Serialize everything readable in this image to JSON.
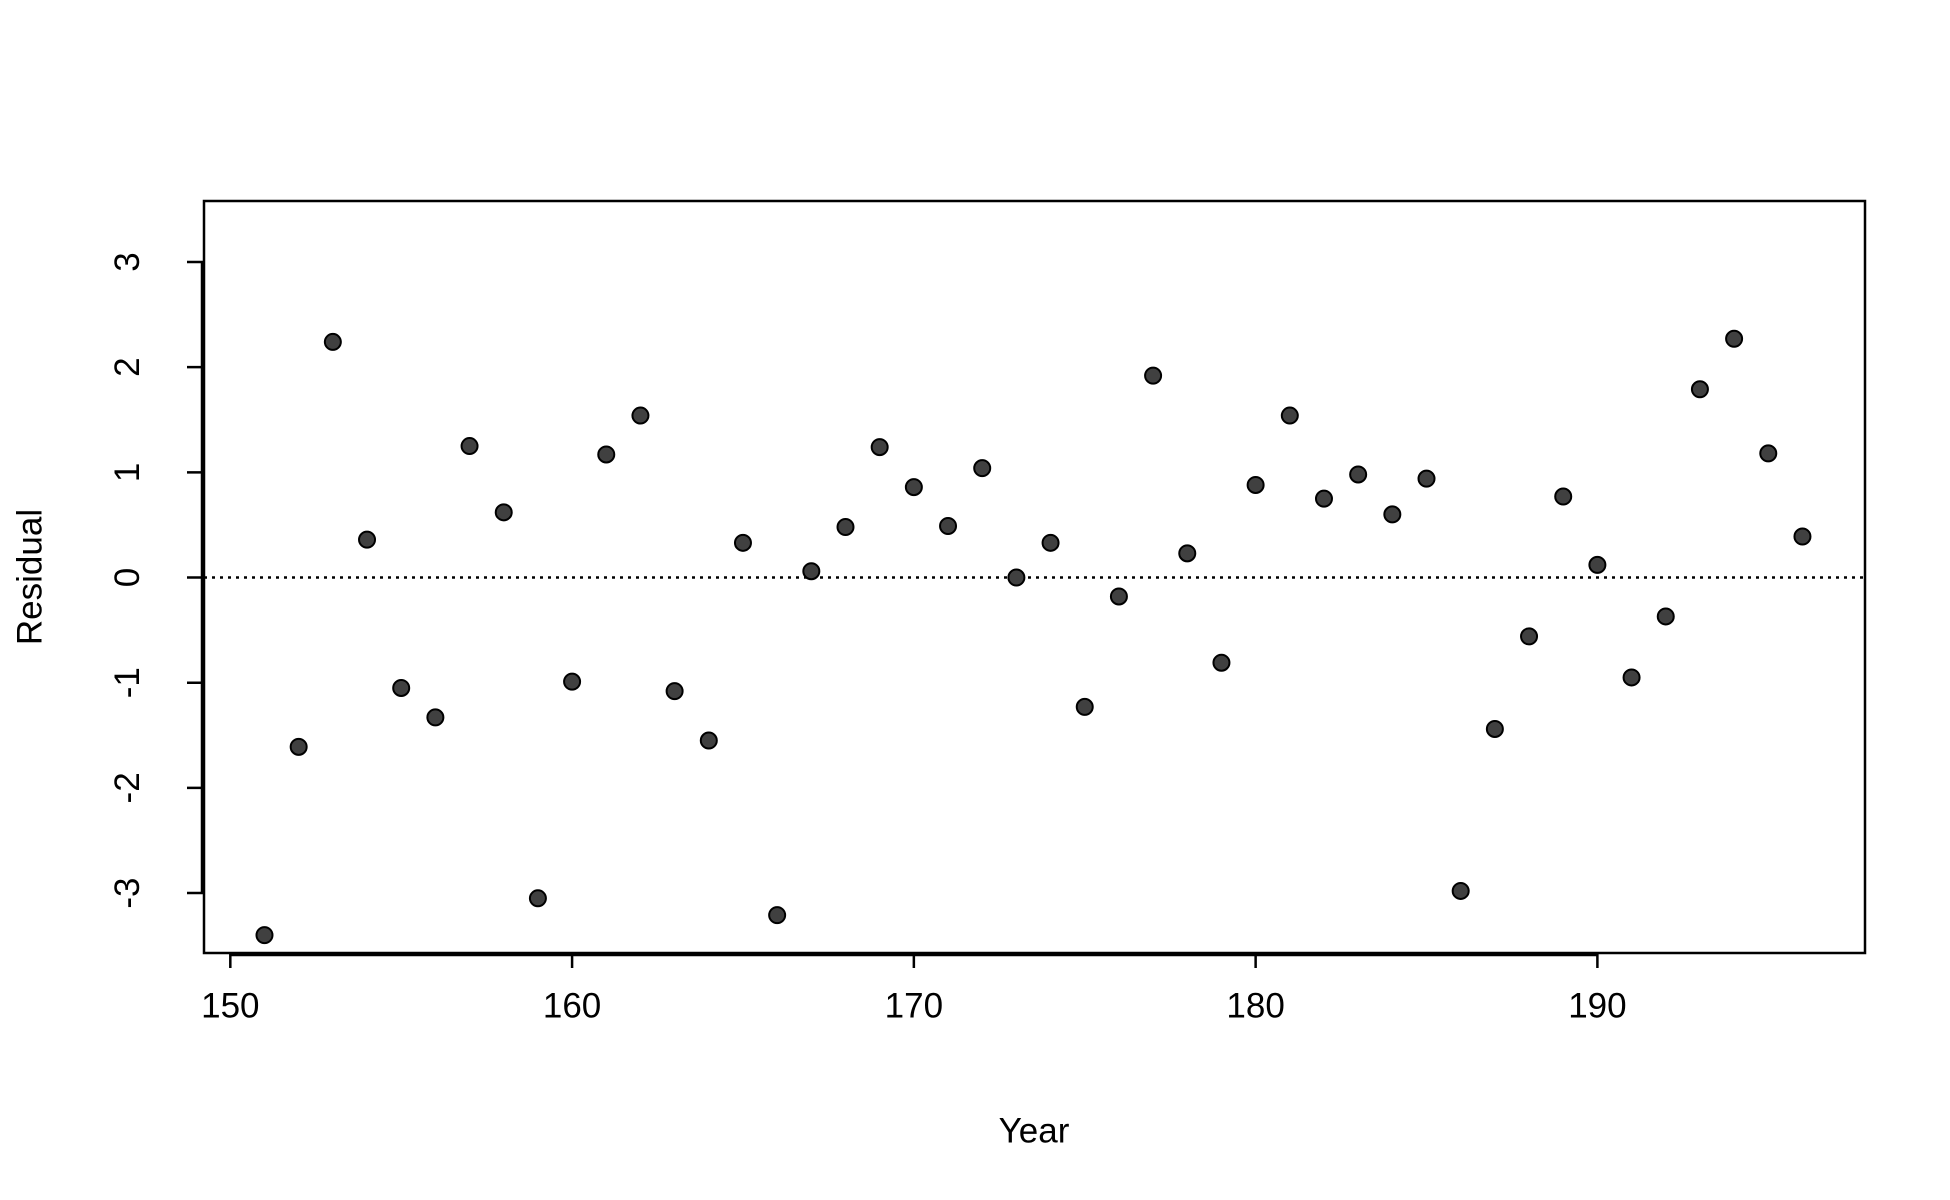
{
  "chart_data": {
    "type": "scatter",
    "xlabel": "Year",
    "ylabel": "Residual",
    "x": [
      151,
      152,
      153,
      154,
      155,
      156,
      157,
      158,
      159,
      160,
      161,
      162,
      163,
      164,
      165,
      166,
      167,
      168,
      169,
      170,
      171,
      172,
      173,
      174,
      175,
      176,
      177,
      178,
      179,
      180,
      181,
      182,
      183,
      184,
      185,
      186,
      187,
      188,
      189,
      190,
      191,
      192,
      193,
      194,
      195,
      196
    ],
    "values": [
      -3.4,
      -1.61,
      2.24,
      0.36,
      -1.05,
      -1.33,
      1.25,
      0.62,
      -3.05,
      -0.99,
      1.17,
      1.54,
      -1.08,
      -1.55,
      0.33,
      -3.21,
      0.06,
      0.48,
      1.24,
      0.86,
      0.49,
      1.04,
      0.0,
      0.33,
      -1.23,
      -0.18,
      1.92,
      0.23,
      -0.81,
      0.88,
      1.54,
      0.75,
      0.98,
      0.6,
      0.94,
      -2.98,
      -1.44,
      -0.56,
      0.77,
      0.12,
      -0.95,
      -0.37,
      1.79,
      2.27,
      1.18,
      0.39
    ],
    "color": "#404040",
    "xlim": [
      149.23,
      197.83
    ],
    "ylim": [
      -3.57,
      3.58
    ],
    "xticks": [
      150,
      160,
      170,
      180,
      190
    ],
    "yticks": [
      -3,
      -2,
      -1,
      0,
      1,
      2,
      3
    ],
    "reference_line": 0
  }
}
